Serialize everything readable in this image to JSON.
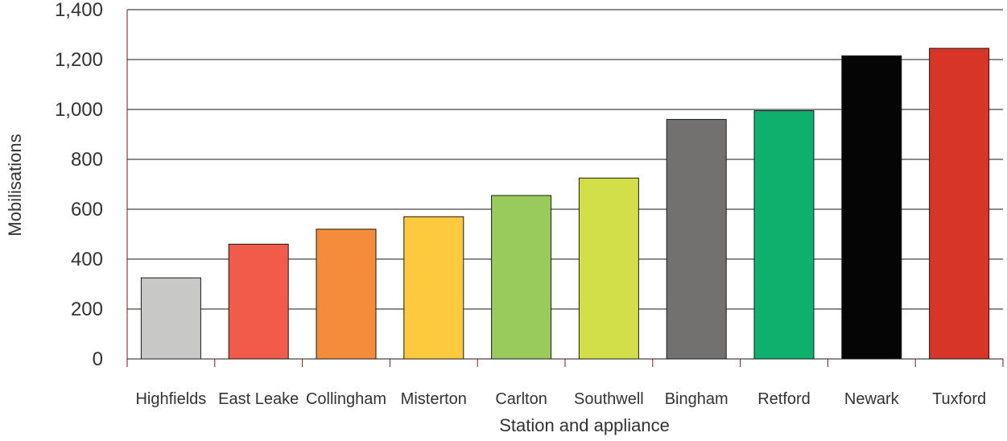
{
  "chart_data": {
    "type": "bar",
    "title": "",
    "xlabel": "Station and appliance",
    "ylabel": "Mobilisations",
    "ylim": [
      0,
      1400
    ],
    "yticks": [
      0,
      200,
      400,
      600,
      800,
      1000,
      1200,
      1400
    ],
    "ytick_labels": [
      "0",
      "200",
      "400",
      "600",
      "800",
      "1,000",
      "1,200",
      "1,400"
    ],
    "grid": true,
    "categories": [
      "Highfields",
      "East Leake",
      "Collingham",
      "Misterton",
      "Carlton",
      "Southwell",
      "Bingham",
      "Retford",
      "Newark",
      "Tuxford"
    ],
    "values": [
      325,
      460,
      520,
      570,
      655,
      725,
      960,
      995,
      1215,
      1245
    ],
    "colors": [
      "#c8c8c7",
      "#f15c4a",
      "#f48c3b",
      "#fcc93f",
      "#98cb5b",
      "#d3df48",
      "#727170",
      "#0fb06e",
      "#050505",
      "#d63527"
    ]
  }
}
